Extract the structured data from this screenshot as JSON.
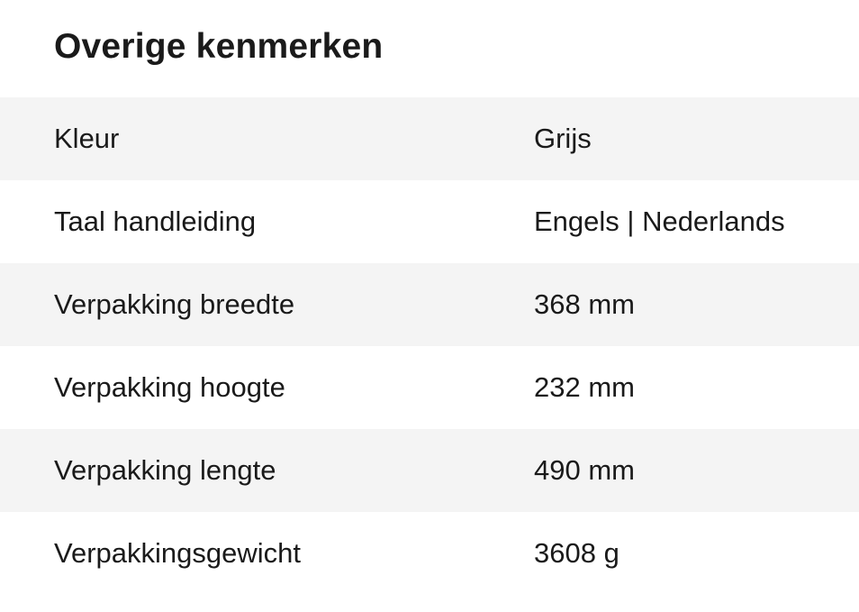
{
  "section": {
    "title": "Overige kenmerken",
    "rows": [
      {
        "label": "Kleur",
        "value": "Grijs"
      },
      {
        "label": "Taal handleiding",
        "value": "Engels | Nederlands"
      },
      {
        "label": "Verpakking breedte",
        "value": "368 mm"
      },
      {
        "label": "Verpakking hoogte",
        "value": "232 mm"
      },
      {
        "label": "Verpakking lengte",
        "value": "490 mm"
      },
      {
        "label": "Verpakkingsgewicht",
        "value": "3608 g"
      }
    ]
  },
  "colors": {
    "row_stripe": "#f4f4f4",
    "text": "#1a1a1a"
  }
}
